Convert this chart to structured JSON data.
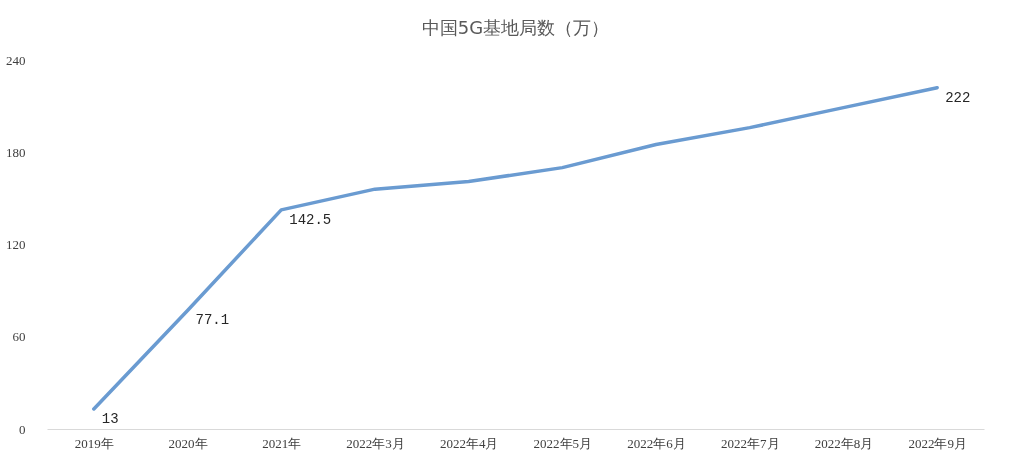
{
  "chart_data": {
    "type": "line",
    "title": "中国5G基地局数（万）",
    "categories": [
      "2019年",
      "2020年",
      "2021年",
      "2022年3月",
      "2022年4月",
      "2022年5月",
      "2022年6月",
      "2022年7月",
      "2022年8月",
      "2022年9月"
    ],
    "series": [
      {
        "color": "#6a9bd1",
        "values": [
          13,
          77.1,
          142.5,
          156,
          161,
          170,
          185,
          196,
          209,
          222
        ],
        "value_labels": [
          "13",
          "77.1",
          "142.5",
          null,
          null,
          null,
          null,
          null,
          null,
          "222"
        ]
      }
    ],
    "ylim": [
      0,
      240
    ],
    "yticks": [
      0,
      60,
      120,
      180,
      240
    ],
    "marker": "none",
    "line_style": "solid"
  }
}
